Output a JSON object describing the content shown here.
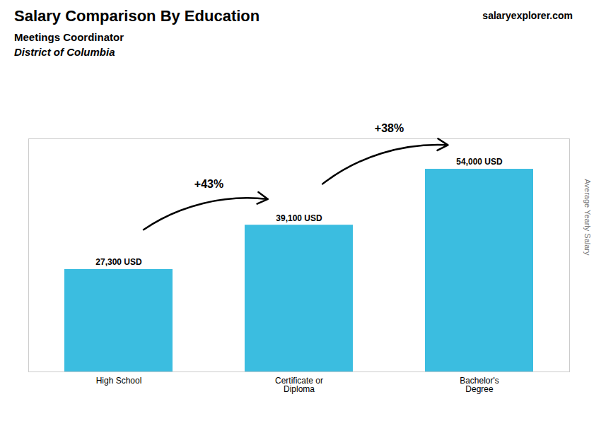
{
  "chart_data": {
    "type": "bar",
    "title": "Salary Comparison By Education",
    "subtitle": [
      "Meetings Coordinator",
      "District of Columbia"
    ],
    "source": "salaryexplorer.com",
    "ylabel": "Average Yearly Salary",
    "categories": [
      "High School",
      "Certificate or\nDiploma",
      "Bachelor's\nDegree"
    ],
    "values": [
      27300,
      39100,
      54000
    ],
    "value_labels": [
      "27,300 USD",
      "39,100 USD",
      "54,000 USD"
    ],
    "data_labels": true,
    "annotations": [
      "+43%",
      "+38%"
    ],
    "color": "#3bbde0",
    "ylim": [
      0,
      62100
    ],
    "tick_labels": "x"
  }
}
